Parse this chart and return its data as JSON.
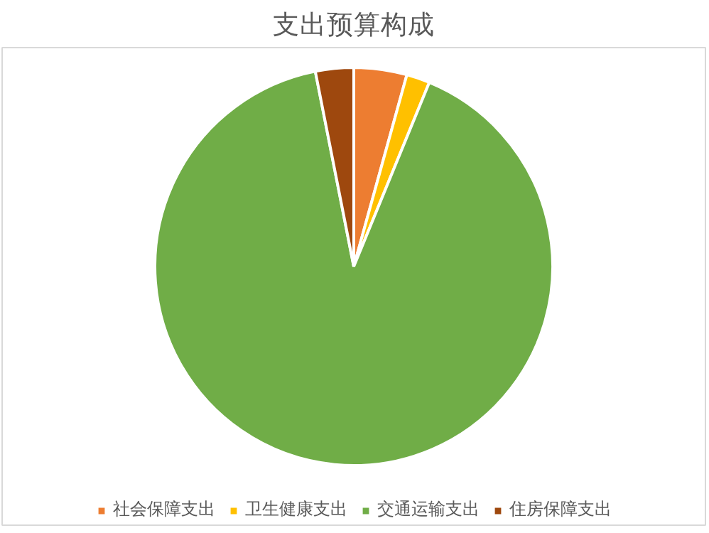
{
  "chart_data": {
    "type": "pie",
    "title": "支出预算构成",
    "categories": [
      "社会保障支出",
      "卫生健康支出",
      "交通运输支出",
      "住房保障支出"
    ],
    "values": [
      4.3,
      1.9,
      90.7,
      3.1
    ],
    "colors": [
      "#ed7d31",
      "#ffc000",
      "#70ad47",
      "#9e480e"
    ],
    "legend": "bottom"
  }
}
